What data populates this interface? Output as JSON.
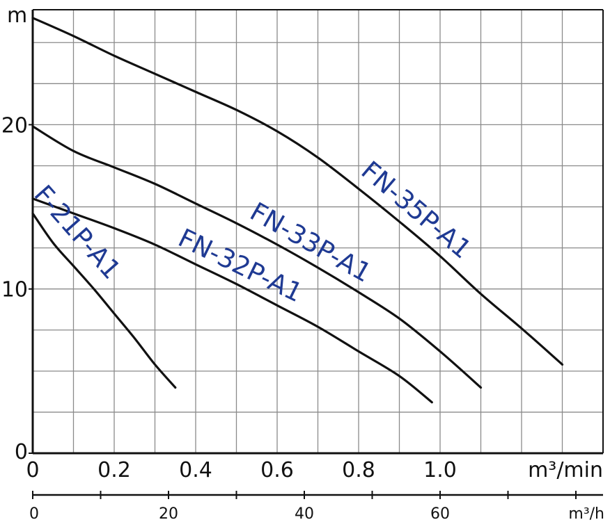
{
  "chart_data": {
    "type": "line",
    "y_unit": "m",
    "x_unit": "m³/min",
    "x2_unit": "m³/h",
    "xlim": [
      0,
      1.4
    ],
    "ylim": [
      0,
      27
    ],
    "x_ticks": [
      {
        "v": 0,
        "label": "0"
      },
      {
        "v": 0.2,
        "label": "0.2"
      },
      {
        "v": 0.4,
        "label": "0.4"
      },
      {
        "v": 0.6,
        "label": "0.6"
      },
      {
        "v": 0.8,
        "label": "0.8"
      },
      {
        "v": 1.0,
        "label": "1.0"
      }
    ],
    "y_ticks": [
      {
        "v": 0,
        "label": "0"
      },
      {
        "v": 10,
        "label": "10"
      },
      {
        "v": 20,
        "label": "20"
      }
    ],
    "x2_ticks": [
      {
        "v": 0,
        "label": "0"
      },
      {
        "v": 20,
        "label": "20"
      },
      {
        "v": 40,
        "label": "40"
      },
      {
        "v": 60,
        "label": "60"
      }
    ],
    "x2_minor": [
      10,
      30,
      50,
      70,
      80
    ],
    "x2_lim": [
      0,
      84
    ],
    "grid": true,
    "series": [
      {
        "name": "FN-35P-A1",
        "x": [
          0,
          0.1,
          0.2,
          0.3,
          0.4,
          0.5,
          0.6,
          0.7,
          0.8,
          0.9,
          1.0,
          1.1,
          1.2,
          1.3
        ],
        "y": [
          26.5,
          25.4,
          24.2,
          23.1,
          22.0,
          20.9,
          19.6,
          18.0,
          16.1,
          14.1,
          12.0,
          9.7,
          7.6,
          5.4
        ]
      },
      {
        "name": "FN-33P-A1",
        "x": [
          0,
          0.1,
          0.2,
          0.3,
          0.4,
          0.5,
          0.6,
          0.7,
          0.8,
          0.9,
          1.0,
          1.1
        ],
        "y": [
          19.9,
          18.4,
          17.4,
          16.4,
          15.2,
          14.0,
          12.7,
          11.3,
          9.8,
          8.2,
          6.2,
          4.0
        ]
      },
      {
        "name": "FN-32P-A1",
        "x": [
          0,
          0.1,
          0.2,
          0.3,
          0.4,
          0.5,
          0.6,
          0.7,
          0.8,
          0.9,
          0.98
        ],
        "y": [
          15.5,
          14.6,
          13.7,
          12.7,
          11.5,
          10.3,
          9.0,
          7.7,
          6.2,
          4.7,
          3.1
        ]
      },
      {
        "name": "F-21P-A1",
        "x": [
          0,
          0.05,
          0.1,
          0.15,
          0.2,
          0.25,
          0.3,
          0.35
        ],
        "y": [
          14.6,
          12.8,
          11.4,
          10.0,
          8.5,
          7.0,
          5.4,
          4.0
        ]
      }
    ],
    "label_color": "#1f3a93"
  }
}
